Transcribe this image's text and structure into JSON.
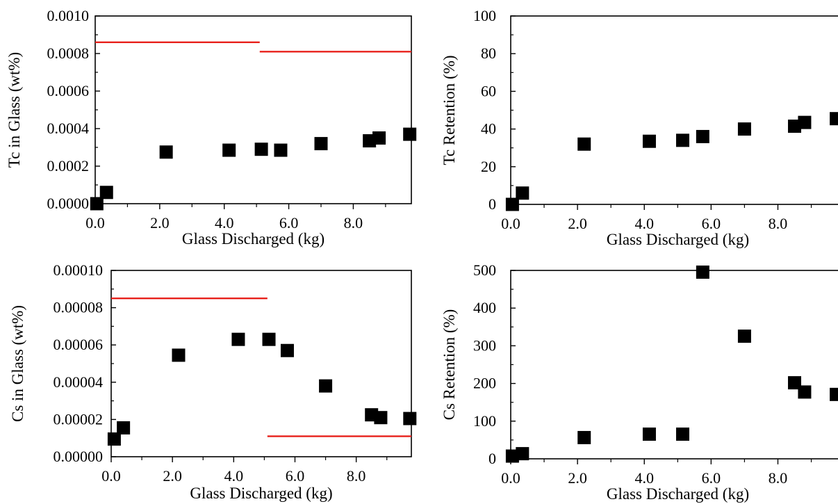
{
  "chart_data": [
    {
      "id": "tc-glass",
      "type": "scatter",
      "xlabel": "Glass Discharged  (kg)",
      "ylabel": "Tc in Glass (wt%)",
      "xlim": [
        0,
        9.8
      ],
      "ylim": [
        0,
        0.001
      ],
      "x_ticks": [
        "0.0",
        "2.0",
        "4.0",
        "6.0",
        "8.0"
      ],
      "y_ticks": [
        "0.0000",
        "0.0002",
        "0.0004",
        "0.0006",
        "0.0008",
        "0.0010"
      ],
      "points": [
        [
          0.05,
          0.0
        ],
        [
          0.35,
          6e-05
        ],
        [
          2.2,
          0.000275
        ],
        [
          4.15,
          0.000285
        ],
        [
          5.15,
          0.00029
        ],
        [
          5.75,
          0.000285
        ],
        [
          7.0,
          0.00032
        ],
        [
          8.5,
          0.000335
        ],
        [
          8.8,
          0.00035
        ],
        [
          9.75,
          0.00037
        ]
      ],
      "reference_lines": [
        {
          "x0": 0,
          "x1": 5.1,
          "y": 0.00086
        },
        {
          "x0": 5.1,
          "x1": 9.8,
          "y": 0.00081
        }
      ]
    },
    {
      "id": "tc-retention",
      "type": "scatter",
      "xlabel": "Glass Discharged  (kg)",
      "ylabel": "Tc Retention (%)",
      "xlim": [
        0,
        9.8
      ],
      "ylim": [
        0,
        100
      ],
      "x_ticks": [
        "0.0",
        "2.0",
        "4.0",
        "6.0",
        "8.0"
      ],
      "y_ticks": [
        "0",
        "20",
        "40",
        "60",
        "80",
        "100"
      ],
      "points": [
        [
          0.05,
          0
        ],
        [
          0.35,
          6
        ],
        [
          2.2,
          32
        ],
        [
          4.15,
          33.5
        ],
        [
          5.15,
          34
        ],
        [
          5.75,
          36
        ],
        [
          7.0,
          40
        ],
        [
          8.5,
          41.5
        ],
        [
          8.8,
          43.5
        ],
        [
          9.75,
          45.5
        ]
      ],
      "reference_lines": []
    },
    {
      "id": "cs-glass",
      "type": "scatter",
      "xlabel": "Glass Discharged  (kg)",
      "ylabel": "Cs in Glass (wt%)",
      "xlim": [
        0,
        9.8
      ],
      "ylim": [
        0,
        0.0001
      ],
      "x_ticks": [
        "0.0",
        "2.0",
        "4.0",
        "6.0",
        "8.0"
      ],
      "y_ticks": [
        "0.00000",
        "0.00002",
        "0.00004",
        "0.00006",
        "0.00008",
        "0.00010"
      ],
      "points": [
        [
          0.1,
          9.5e-06
        ],
        [
          0.4,
          1.55e-05
        ],
        [
          2.2,
          5.45e-05
        ],
        [
          4.15,
          6.3e-05
        ],
        [
          5.15,
          6.3e-05
        ],
        [
          5.75,
          5.7e-05
        ],
        [
          7.0,
          3.8e-05
        ],
        [
          8.5,
          2.25e-05
        ],
        [
          8.8,
          2.1e-05
        ],
        [
          9.75,
          2.05e-05
        ]
      ],
      "reference_lines": [
        {
          "x0": 0,
          "x1": 5.1,
          "y": 8.5e-05
        },
        {
          "x0": 5.1,
          "x1": 9.8,
          "y": 1.1e-05
        }
      ]
    },
    {
      "id": "cs-retention",
      "type": "scatter",
      "xlabel": "Glass Discharged  (kg)",
      "ylabel": "Cs Retention (%)",
      "xlim": [
        0,
        9.8
      ],
      "ylim": [
        0,
        550
      ],
      "x_ticks": [
        "0.0",
        "2.0",
        "4.0",
        "6.0",
        "8.0"
      ],
      "y_ticks": [
        "0",
        "100",
        "200",
        "300",
        "400",
        "500"
      ],
      "points": [
        [
          0.05,
          8
        ],
        [
          0.35,
          15
        ],
        [
          2.2,
          62
        ],
        [
          4.15,
          72
        ],
        [
          5.15,
          72
        ],
        [
          5.75,
          545
        ],
        [
          7.0,
          358
        ],
        [
          8.5,
          222
        ],
        [
          8.8,
          195
        ],
        [
          9.75,
          188
        ]
      ],
      "reference_lines": []
    }
  ],
  "colors": {
    "marker": "#000000",
    "reference_line": "#e8211b",
    "axis": "#000000"
  }
}
